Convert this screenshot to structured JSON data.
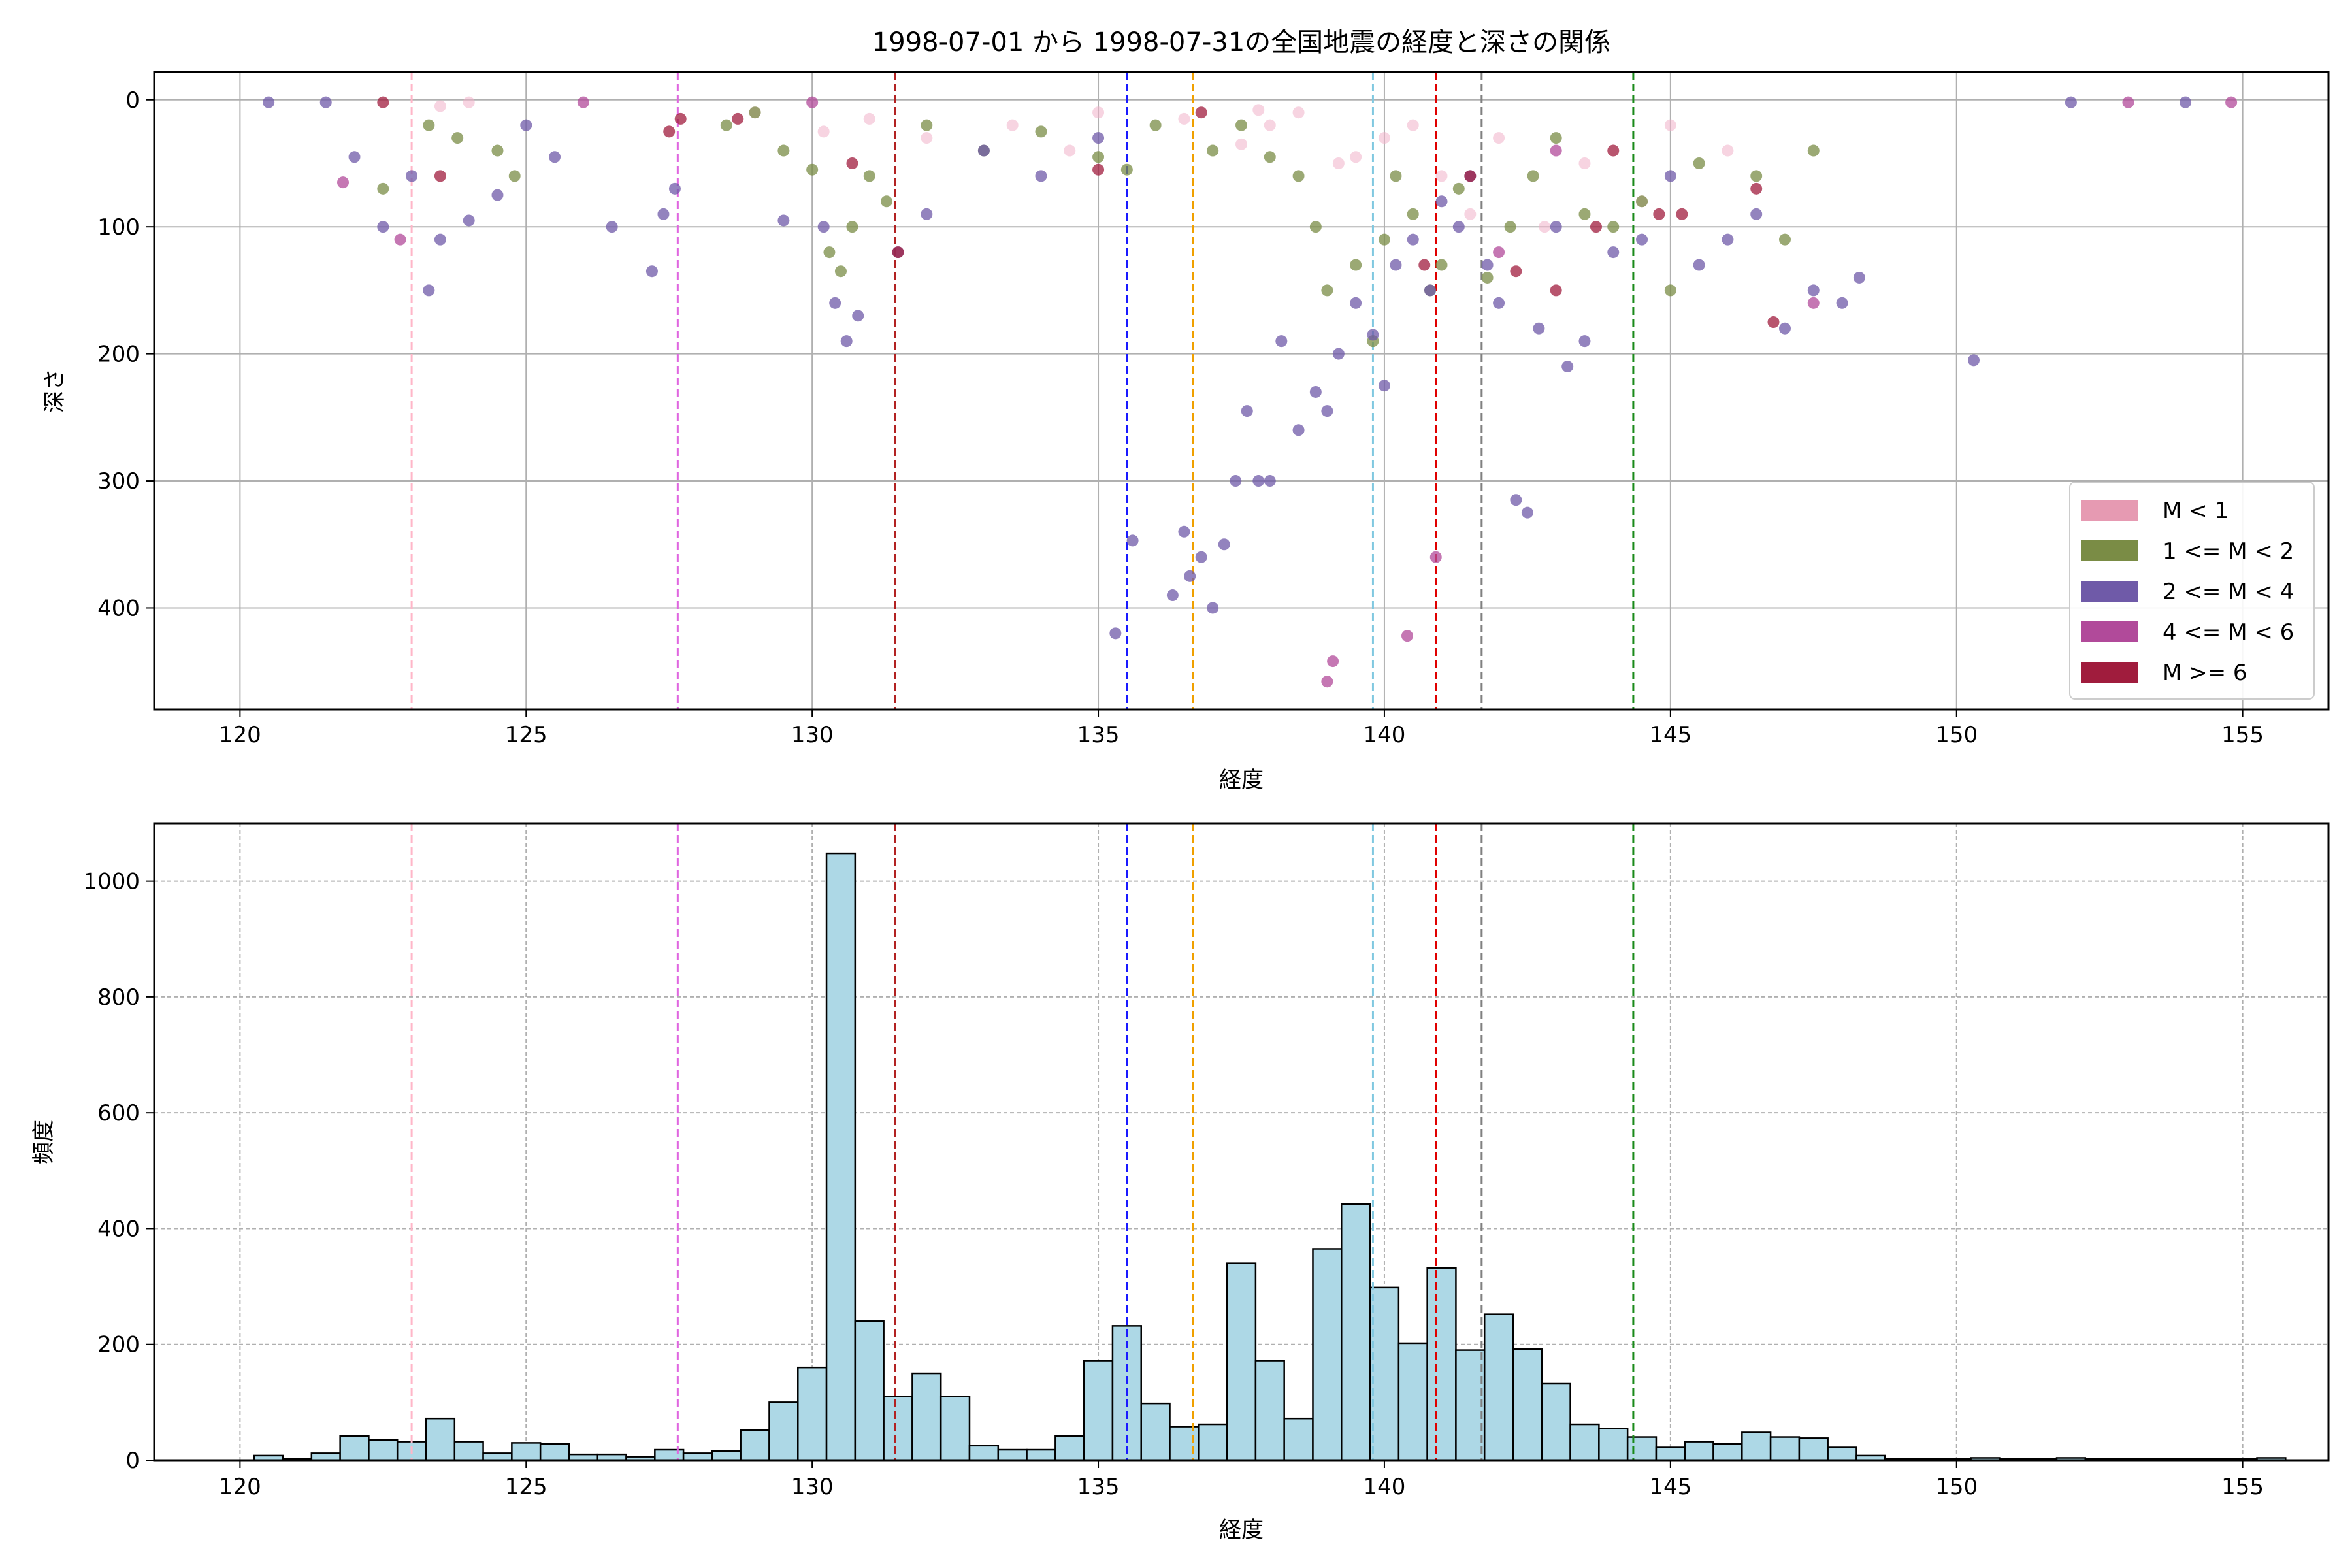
{
  "chart_data": [
    {
      "type": "scatter",
      "title": "1998-07-01 から 1998-07-31の全国地震の経度と深さの関係",
      "xlabel": "経度",
      "ylabel": "深さ",
      "xlim": [
        118.5,
        156.5
      ],
      "ylim": [
        480,
        -22
      ],
      "y_inverted": true,
      "grid": true,
      "x_ticks": [
        "120",
        "125",
        "130",
        "135",
        "140",
        "145",
        "150",
        "155"
      ],
      "y_ticks": [
        "0",
        "100",
        "200",
        "300",
        "400"
      ],
      "legend_position": "lower-right",
      "legend": [
        {
          "label": "M < 1",
          "color": "#e69ab2"
        },
        {
          "label": "1 <= M < 2",
          "color": "#7a8c45"
        },
        {
          "label": "2 <= M < 4",
          "color": "#6f5aa8"
        },
        {
          "label": "4 <= M < 6",
          "color": "#b14a9a"
        },
        {
          "label": "M >= 6",
          "color": "#a01c3d"
        }
      ],
      "reference_lines": [
        {
          "x": 123.0,
          "color": "#ffb6c8"
        },
        {
          "x": 127.65,
          "color": "#e066e0"
        },
        {
          "x": 131.45,
          "color": "#b22222"
        },
        {
          "x": 135.5,
          "color": "#1a1aff"
        },
        {
          "x": 136.65,
          "color": "#f0a000"
        },
        {
          "x": 139.8,
          "color": "#80c8e0"
        },
        {
          "x": 140.9,
          "color": "#e00000"
        },
        {
          "x": 141.7,
          "color": "#808080"
        },
        {
          "x": 144.35,
          "color": "#1a8a1a"
        }
      ],
      "series": [
        {
          "name": "M < 1",
          "color": "#f0b0c8",
          "points": [
            [
              123.5,
              5
            ],
            [
              124.0,
              2
            ],
            [
              129.0,
              10
            ],
            [
              130.2,
              25
            ],
            [
              131.0,
              15
            ],
            [
              132.0,
              30
            ],
            [
              133.5,
              20
            ],
            [
              134.5,
              40
            ],
            [
              135.0,
              10
            ],
            [
              136.5,
              15
            ],
            [
              137.5,
              35
            ],
            [
              138.0,
              20
            ],
            [
              138.5,
              10
            ],
            [
              139.5,
              45
            ],
            [
              140.0,
              30
            ],
            [
              140.5,
              20
            ],
            [
              141.0,
              60
            ],
            [
              141.5,
              90
            ],
            [
              142.0,
              30
            ],
            [
              142.8,
              100
            ],
            [
              143.5,
              50
            ],
            [
              144.5,
              80
            ],
            [
              145.0,
              20
            ],
            [
              146.0,
              40
            ],
            [
              139.2,
              50
            ],
            [
              137.8,
              8
            ]
          ]
        },
        {
          "name": "1 <= M < 2",
          "color": "#7a8c45",
          "points": [
            [
              122.5,
              70
            ],
            [
              123.3,
              20
            ],
            [
              123.8,
              30
            ],
            [
              124.5,
              40
            ],
            [
              124.8,
              60
            ],
            [
              128.5,
              20
            ],
            [
              129.0,
              10
            ],
            [
              129.5,
              40
            ],
            [
              130.0,
              55
            ],
            [
              130.3,
              120
            ],
            [
              130.5,
              135
            ],
            [
              130.7,
              100
            ],
            [
              131.0,
              60
            ],
            [
              131.3,
              80
            ],
            [
              132.0,
              20
            ],
            [
              133.0,
              40
            ],
            [
              134.0,
              25
            ],
            [
              135.0,
              45
            ],
            [
              135.5,
              55
            ],
            [
              136.0,
              20
            ],
            [
              137.0,
              40
            ],
            [
              137.5,
              20
            ],
            [
              138.0,
              45
            ],
            [
              138.5,
              60
            ],
            [
              138.8,
              100
            ],
            [
              139.0,
              150
            ],
            [
              139.5,
              130
            ],
            [
              139.8,
              190
            ],
            [
              140.0,
              110
            ],
            [
              140.2,
              60
            ],
            [
              140.5,
              90
            ],
            [
              140.8,
              150
            ],
            [
              141.0,
              130
            ],
            [
              141.3,
              70
            ],
            [
              141.8,
              140
            ],
            [
              142.2,
              100
            ],
            [
              142.6,
              60
            ],
            [
              143.0,
              30
            ],
            [
              143.5,
              90
            ],
            [
              144.0,
              100
            ],
            [
              144.5,
              80
            ],
            [
              145.0,
              150
            ],
            [
              145.5,
              50
            ],
            [
              146.5,
              60
            ],
            [
              147.0,
              110
            ],
            [
              147.5,
              40
            ]
          ]
        },
        {
          "name": "2 <= M < 4",
          "color": "#6f5aa8",
          "points": [
            [
              120.5,
              2
            ],
            [
              121.5,
              2
            ],
            [
              122.0,
              45
            ],
            [
              122.5,
              100
            ],
            [
              123.0,
              60
            ],
            [
              123.3,
              150
            ],
            [
              123.5,
              110
            ],
            [
              124.0,
              95
            ],
            [
              124.5,
              75
            ],
            [
              125.0,
              20
            ],
            [
              125.5,
              45
            ],
            [
              126.5,
              100
            ],
            [
              127.2,
              135
            ],
            [
              127.4,
              90
            ],
            [
              127.6,
              70
            ],
            [
              129.5,
              95
            ],
            [
              130.2,
              100
            ],
            [
              130.4,
              160
            ],
            [
              130.6,
              190
            ],
            [
              130.8,
              170
            ],
            [
              131.5,
              120
            ],
            [
              132.0,
              90
            ],
            [
              133.0,
              40
            ],
            [
              134.0,
              60
            ],
            [
              135.0,
              30
            ],
            [
              135.3,
              420
            ],
            [
              135.6,
              347
            ],
            [
              136.3,
              390
            ],
            [
              136.5,
              340
            ],
            [
              136.6,
              375
            ],
            [
              136.8,
              360
            ],
            [
              137.0,
              400
            ],
            [
              137.2,
              350
            ],
            [
              137.4,
              300
            ],
            [
              137.6,
              245
            ],
            [
              137.8,
              300
            ],
            [
              138.0,
              300
            ],
            [
              138.2,
              190
            ],
            [
              138.5,
              260
            ],
            [
              138.8,
              230
            ],
            [
              139.0,
              245
            ],
            [
              139.2,
              200
            ],
            [
              139.5,
              160
            ],
            [
              139.8,
              185
            ],
            [
              140.0,
              225
            ],
            [
              140.2,
              130
            ],
            [
              140.5,
              110
            ],
            [
              140.8,
              150
            ],
            [
              141.0,
              80
            ],
            [
              141.3,
              100
            ],
            [
              141.5,
              60
            ],
            [
              141.8,
              130
            ],
            [
              142.0,
              160
            ],
            [
              142.3,
              315
            ],
            [
              142.5,
              325
            ],
            [
              142.7,
              180
            ],
            [
              143.0,
              100
            ],
            [
              143.2,
              210
            ],
            [
              143.5,
              190
            ],
            [
              144.0,
              120
            ],
            [
              144.5,
              110
            ],
            [
              145.0,
              60
            ],
            [
              145.5,
              130
            ],
            [
              146.0,
              110
            ],
            [
              146.5,
              90
            ],
            [
              147.0,
              180
            ],
            [
              147.5,
              150
            ],
            [
              148.0,
              160
            ],
            [
              148.3,
              140
            ],
            [
              150.3,
              205
            ],
            [
              152.0,
              2
            ],
            [
              154.0,
              2
            ]
          ]
        },
        {
          "name": "4 <= M < 6",
          "color": "#b14a9a",
          "points": [
            [
              121.8,
              65
            ],
            [
              122.8,
              110
            ],
            [
              126.0,
              2
            ],
            [
              130.0,
              2
            ],
            [
              139.1,
              442
            ],
            [
              139.0,
              458
            ],
            [
              140.4,
              422
            ],
            [
              140.9,
              360
            ],
            [
              142.0,
              120
            ],
            [
              143.0,
              40
            ],
            [
              147.5,
              160
            ],
            [
              153.0,
              2
            ],
            [
              154.8,
              2
            ]
          ]
        },
        {
          "name": "M >= 6",
          "color": "#a01c3d",
          "points": [
            [
              122.5,
              2
            ],
            [
              123.5,
              60
            ],
            [
              127.5,
              25
            ],
            [
              127.7,
              15
            ],
            [
              128.7,
              15
            ],
            [
              130.7,
              50
            ],
            [
              131.5,
              120
            ],
            [
              135.0,
              55
            ],
            [
              136.8,
              10
            ],
            [
              140.7,
              130
            ],
            [
              141.5,
              60
            ],
            [
              142.3,
              135
            ],
            [
              143.0,
              150
            ],
            [
              143.7,
              100
            ],
            [
              144.0,
              40
            ],
            [
              144.8,
              90
            ],
            [
              145.2,
              90
            ],
            [
              146.8,
              175
            ],
            [
              146.5,
              70
            ]
          ]
        }
      ]
    },
    {
      "type": "bar",
      "xlabel": "経度",
      "ylabel": "頻度",
      "xlim": [
        118.5,
        156.5
      ],
      "ylim": [
        0,
        1100
      ],
      "grid": true,
      "x_ticks": [
        "120",
        "125",
        "130",
        "135",
        "140",
        "145",
        "150",
        "155"
      ],
      "y_ticks": [
        "0",
        "200",
        "400",
        "600",
        "800",
        "1000"
      ],
      "bar_color": "#add8e6",
      "bin_width": 0.5,
      "bin_start": 120.25,
      "values": [
        8,
        2,
        12,
        42,
        35,
        32,
        72,
        32,
        12,
        30,
        28,
        10,
        10,
        6,
        18,
        12,
        16,
        52,
        100,
        160,
        1048,
        240,
        110,
        150,
        110,
        25,
        18,
        18,
        42,
        172,
        232,
        98,
        58,
        62,
        340,
        172,
        72,
        365,
        442,
        298,
        202,
        332,
        190,
        252,
        192,
        132,
        62,
        55,
        40,
        22,
        32,
        28,
        48,
        40,
        38,
        22,
        8,
        2,
        2,
        2,
        4,
        2,
        2,
        4,
        2,
        2,
        2,
        2,
        2,
        2,
        4
      ]
    }
  ]
}
